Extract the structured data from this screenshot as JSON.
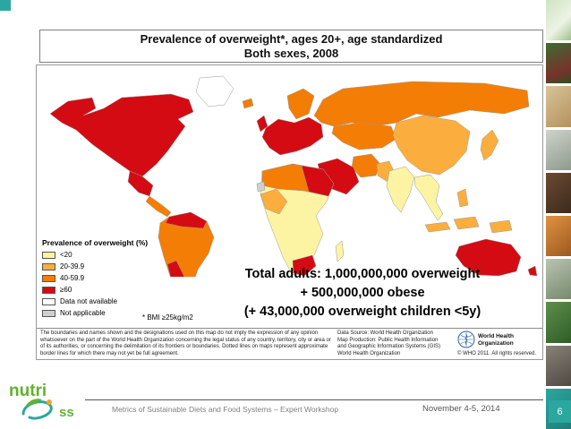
{
  "accent_color": "#2BA7A0",
  "figure": {
    "title_line1": "Prevalence of overweight*, ages 20+, age standardized",
    "title_line2": "Both sexes, 2008",
    "legend": {
      "title": "Prevalence of overweight (%)",
      "items": [
        {
          "label": "<20",
          "key": "lt20"
        },
        {
          "label": "20-39.9",
          "key": "b20_40"
        },
        {
          "label": "40-59.9",
          "key": "b40_60"
        },
        {
          "label": "≥60",
          "key": "ge60"
        },
        {
          "label": "Data not available",
          "key": "no_data"
        },
        {
          "label": "Not applicable",
          "key": "not_applicable"
        }
      ]
    },
    "colors": {
      "lt20": "#FCF4A3",
      "b20_40": "#FBAE3D",
      "b40_60": "#F47D05",
      "ge60": "#D40B13",
      "no_data": "#FFFFFF",
      "not_applicable": "#CFCFCF"
    },
    "regions": {
      "north-america": "ge60",
      "greenland": "no_data",
      "mexico": "ge60",
      "central-america": "b40_60",
      "south-america": "b40_60",
      "venezuela-colombia": "ge60",
      "argentina-chile": "ge60",
      "europe": "ge60",
      "uk": "ge60",
      "iceland": "b40_60",
      "scandinavia": "b40_60",
      "russia": "b40_60",
      "central-asia": "b40_60",
      "china": "b20_40",
      "middle-east": "ge60",
      "iran": "b40_60",
      "pakistan": "b20_40",
      "india": "lt20",
      "southeast-asia": "lt20",
      "indonesia": "b20_40",
      "philippines": "b20_40",
      "japan": "b20_40",
      "papua-new-guinea": "b20_40",
      "australia": "ge60",
      "new-zealand": "ge60",
      "africa-subsaharan": "lt20",
      "north-africa": "b40_60",
      "libya-egypt": "ge60",
      "west-africa": "b20_40",
      "south-africa": "ge60",
      "western-sahara": "not_applicable",
      "madagascar": "lt20"
    },
    "bmi_note": "* BMI ≥25kg/m2",
    "overlay_line1": "Total adults: 1,000,000,000 overweight",
    "overlay_line2": "+  500,000,000 obese",
    "overlay_line3": "(+ 43,000,000 overweight children <5y)",
    "disclaimer": "The boundaries and names shown and the designations used on this map do not imply the expression of any opinion whatsoever on the part of the World Health Organization concerning the legal status of any country, territory, city or area or of its authorities, or concerning the delimitation of its frontiers or boundaries. Dotted lines on maps represent approximate border lines for which there may not yet be full agreement.",
    "source_lines": "Data Source: World Health Organization\nMap Production: Public Health Information\nand Geographic Information Systems (GIS)\nWorld Health Organization",
    "who_logo_label": "World Health\nOrganization",
    "copyright": "© WHO 2011. All rights reserved."
  },
  "footer": {
    "workshop_title": "Metrics of Sustainable Diets and Food Systems – Expert Workshop",
    "date": "November 4-5, 2014",
    "page_number": "6"
  },
  "logo": {
    "line1": "nutri",
    "line2": "ss"
  }
}
